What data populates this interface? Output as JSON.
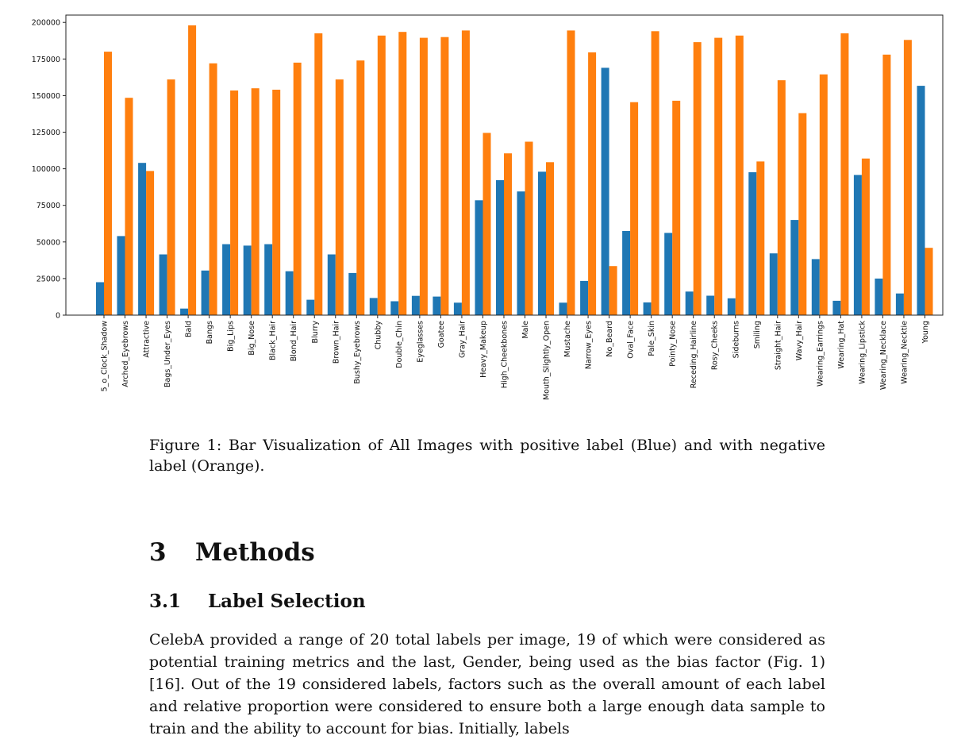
{
  "chart_data": {
    "type": "bar",
    "title": "",
    "xlabel": "",
    "ylabel": "",
    "ylim": [
      0,
      205000
    ],
    "yticks": [
      0,
      25000,
      50000,
      75000,
      100000,
      125000,
      150000,
      175000,
      200000
    ],
    "grid": false,
    "legend": "none",
    "categories": [
      "5_o_Clock_Shadow",
      "Arched_Eyebrows",
      "Attractive",
      "Bags_Under_Eyes",
      "Bald",
      "Bangs",
      "Big_Lips",
      "Big_Nose",
      "Black_Hair",
      "Blond_Hair",
      "Blurry",
      "Brown_Hair",
      "Bushy_Eyebrows",
      "Chubby",
      "Double_Chin",
      "Eyeglasses",
      "Goatee",
      "Gray_Hair",
      "Heavy_Makeup",
      "High_Cheekbones",
      "Male",
      "Mouth_Slightly_Open",
      "Mustache",
      "Narrow_Eyes",
      "No_Beard",
      "Oval_Face",
      "Pale_Skin",
      "Pointy_Nose",
      "Receding_Hairline",
      "Rosy_Cheeks",
      "Sideburns",
      "Smiling",
      "Straight_Hair",
      "Wavy_Hair",
      "Wearing_Earrings",
      "Wearing_Hat",
      "Wearing_Lipstick",
      "Wearing_Necklace",
      "Wearing_Necktie",
      "Young"
    ],
    "series": [
      {
        "color": "#1f77b4",
        "values": [
          22500,
          54000,
          104000,
          41500,
          4500,
          30500,
          48500,
          47500,
          48500,
          30000,
          10500,
          41500,
          28800,
          11700,
          9500,
          13200,
          12700,
          8500,
          78500,
          92200,
          84500,
          98000,
          8500,
          23400,
          169000,
          57500,
          8700,
          56200,
          16100,
          13300,
          11500,
          97700,
          42200,
          65000,
          38300,
          9800,
          95800,
          25000,
          14800,
          156700
        ]
      },
      {
        "color": "#ff7f0e",
        "values": [
          180000,
          148500,
          98500,
          161000,
          198000,
          172000,
          153500,
          155000,
          154000,
          172500,
          192500,
          161000,
          174000,
          191000,
          193500,
          189500,
          190000,
          194500,
          124500,
          110500,
          118500,
          104500,
          194500,
          179500,
          33500,
          145500,
          194000,
          146500,
          186500,
          189500,
          191000,
          105000,
          160500,
          138000,
          164500,
          192500,
          107000,
          178000,
          188000,
          46000
        ]
      }
    ]
  },
  "caption": "Figure 1: Bar Visualization of All Images with positive label (Blue) and with negative label (Orange).",
  "section": {
    "number": "3",
    "title": "Methods"
  },
  "subsection": {
    "number": "3.1",
    "title": "Label Selection"
  },
  "body": "CelebA provided a range of 20 total labels per image, 19 of which were considered as potential training metrics and the last, Gender, being used as the bias factor (Fig. 1) [16]. Out of the 19 considered labels, factors such as the overall amount of each label and relative proportion were considered to ensure both a large enough data sample to train and the ability to account for bias. Initially, labels"
}
